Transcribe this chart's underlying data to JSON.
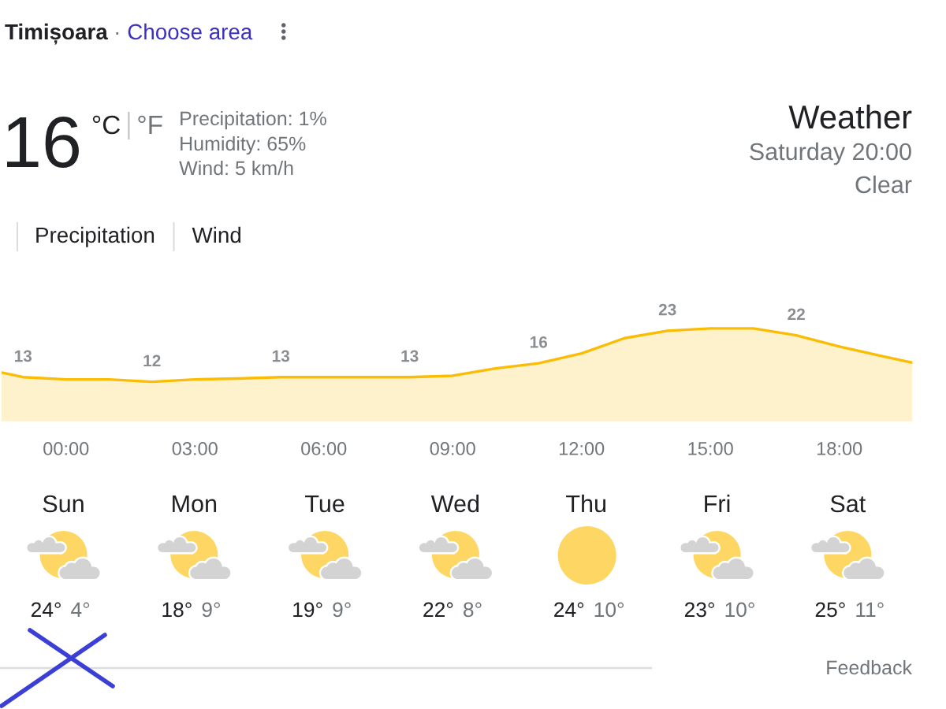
{
  "chart_data": {
    "type": "area",
    "x": [
      -1.5,
      -1,
      0,
      1,
      2,
      3,
      4,
      5,
      6,
      7,
      8,
      9,
      10,
      11,
      12,
      13,
      14,
      15,
      16,
      17,
      18,
      19,
      19.7
    ],
    "values": [
      14.0,
      13,
      12.5,
      12.5,
      12,
      12.5,
      12.7,
      13,
      13,
      13,
      13,
      13.3,
      14.9,
      16,
      18.1,
      21.4,
      23,
      23.5,
      23.5,
      22,
      19.6,
      17.5,
      16.1
    ],
    "value_labels": [
      null,
      "13",
      null,
      null,
      "12",
      null,
      null,
      "13",
      null,
      null,
      "13",
      null,
      null,
      "16",
      null,
      null,
      "23",
      null,
      null,
      "22",
      null,
      null,
      null
    ],
    "color": "#fbbc04",
    "xlim": [
      -1.5,
      19.7
    ],
    "xticks": [
      {
        "value": 0,
        "label": "00:00"
      },
      {
        "value": 3,
        "label": "03:00"
      },
      {
        "value": 6,
        "label": "06:00"
      },
      {
        "value": 9,
        "label": "09:00"
      },
      {
        "value": 12,
        "label": "12:00"
      },
      {
        "value": 15,
        "label": "15:00"
      },
      {
        "value": 18,
        "label": "18:00"
      }
    ],
    "tick_labels": "x",
    "annotations": [
      "Timișoara",
      "·",
      "Choose area",
      "16",
      "°C",
      "°F",
      "Precipitation: 1%",
      "Humidity: 65%",
      "Wind: 5 km/h",
      "Weather",
      "Saturday 20:00",
      "Clear",
      "Precipitation",
      "Wind",
      "Sun",
      "24°",
      "4°",
      "Mon",
      "18°",
      "9°",
      "Tue",
      "19°",
      "9°",
      "Wed",
      "22°",
      "8°",
      "Thu",
      "24°",
      "10°",
      "Fri",
      "23°",
      "10°",
      "Sat",
      "25°",
      "11°",
      "Feedback"
    ]
  }
}
